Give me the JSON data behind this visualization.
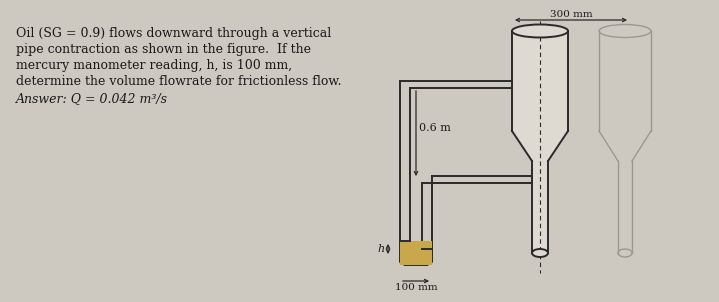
{
  "bg_color": "#cdc9c0",
  "text_color": "#1a1a1a",
  "line1": "Oil (SG = 0.9) flows downward through a vertical",
  "line2": "pipe contraction as shown in the figure.  If the",
  "line3": "mercury manometer reading, h, is 100 mm,",
  "line4": "determine the volume flowrate for frictionless flow.",
  "line5": "Answer: Q = 0.042 m³/s",
  "dim_300": "300 mm",
  "dim_06": "0.6 m",
  "dim_h": "h",
  "dim_100": "100 mm",
  "mercury_color": "#c8a84b",
  "pipe_color": "#2a2a2a",
  "pipe_fill": "#dedad2",
  "fig_bg": "#cdc9c0",
  "ghost_color": "#999990"
}
